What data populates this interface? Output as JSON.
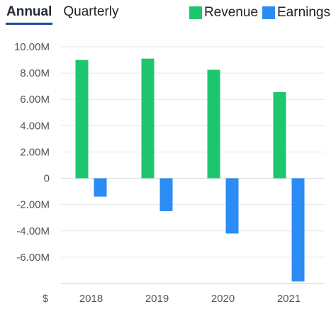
{
  "tabs": [
    {
      "label": "Annual",
      "active": true
    },
    {
      "label": "Quarterly",
      "active": false
    }
  ],
  "chart_data": {
    "type": "bar",
    "categories": [
      "2018",
      "2019",
      "2020",
      "2021"
    ],
    "series": [
      {
        "name": "Revenue",
        "color": "#1ec66e",
        "values": [
          9.0,
          9.1,
          8.25,
          6.55
        ]
      },
      {
        "name": "Earnings",
        "color": "#2a8cf4",
        "values": [
          -1.4,
          -2.5,
          -4.2,
          -7.85
        ]
      }
    ],
    "y_ticks": [
      {
        "value": 10,
        "label": "10.00M"
      },
      {
        "value": 8,
        "label": "8.00M"
      },
      {
        "value": 6,
        "label": "6.00M"
      },
      {
        "value": 4,
        "label": "4.00M"
      },
      {
        "value": 2,
        "label": "2.00M"
      },
      {
        "value": 0,
        "label": "0"
      },
      {
        "value": -2,
        "label": "-2.00M"
      },
      {
        "value": -4,
        "label": "-4.00M"
      },
      {
        "value": -6,
        "label": "-6.00M"
      }
    ],
    "ylim": [
      -8,
      10
    ],
    "unit_label": "$",
    "grid": true,
    "legend": "top-right"
  }
}
